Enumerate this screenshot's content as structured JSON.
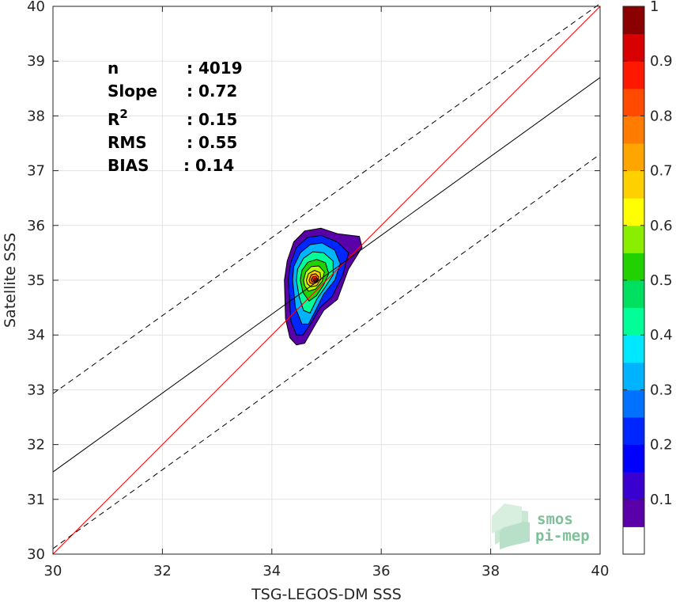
{
  "chart_data": {
    "type": "scatter",
    "subtype": "density-contour",
    "xlabel": "TSG-LEGOS-DM SSS",
    "ylabel": "Satellite SSS",
    "xlim": [
      30,
      40
    ],
    "ylim": [
      30,
      40
    ],
    "x_ticks": [
      "30",
      "32",
      "34",
      "36",
      "38",
      "40"
    ],
    "y_ticks": [
      "30",
      "31",
      "32",
      "33",
      "34",
      "35",
      "36",
      "37",
      "38",
      "39",
      "40"
    ],
    "grid": true,
    "stats": [
      {
        "label": "n",
        "sep": ": ",
        "value": "4019"
      },
      {
        "label": "Slope",
        "sep": ": ",
        "value": "0.72"
      },
      {
        "label": "R",
        "sup": "2",
        "sep": ": ",
        "value": "0.15"
      },
      {
        "label": "RMS",
        "sep": ": ",
        "value": "0.55"
      },
      {
        "label": "BIAS",
        "sep": ": ",
        "value": "0.14"
      }
    ],
    "lines": [
      {
        "kind": "identity",
        "color": "#ff0000",
        "dash": false,
        "points": [
          [
            30,
            30
          ],
          [
            40,
            40
          ]
        ]
      },
      {
        "kind": "regression",
        "color": "#000000",
        "dash": false,
        "points": [
          [
            30,
            31.5
          ],
          [
            40,
            38.7
          ]
        ]
      },
      {
        "kind": "upper-bound",
        "color": "#000000",
        "dash": true,
        "points": [
          [
            30,
            32.93
          ],
          [
            40,
            40.05
          ]
        ]
      },
      {
        "kind": "lower-bound",
        "color": "#000000",
        "dash": true,
        "points": [
          [
            30,
            30.1
          ],
          [
            40,
            37.3
          ]
        ]
      }
    ],
    "density": {
      "center": [
        34.8,
        35.0
      ],
      "levels": [
        0.05,
        0.15,
        0.25,
        0.35,
        0.45,
        0.55,
        0.65,
        0.75,
        0.85,
        0.95
      ],
      "contours": [
        [
          [
            34.23,
            35.0
          ],
          [
            34.28,
            35.35
          ],
          [
            34.4,
            35.7
          ],
          [
            34.6,
            35.9
          ],
          [
            34.9,
            35.95
          ],
          [
            35.2,
            35.85
          ],
          [
            35.6,
            35.8
          ],
          [
            35.65,
            35.6
          ],
          [
            35.4,
            35.2
          ],
          [
            35.2,
            34.65
          ],
          [
            34.95,
            34.45
          ],
          [
            34.8,
            34.2
          ],
          [
            34.6,
            33.85
          ],
          [
            34.45,
            33.82
          ],
          [
            34.33,
            33.95
          ],
          [
            34.25,
            34.3
          ]
        ],
        [
          [
            34.3,
            35.0
          ],
          [
            34.34,
            35.3
          ],
          [
            34.45,
            35.6
          ],
          [
            34.65,
            35.78
          ],
          [
            34.9,
            35.82
          ],
          [
            35.2,
            35.7
          ],
          [
            35.4,
            35.5
          ],
          [
            35.3,
            35.1
          ],
          [
            35.1,
            34.7
          ],
          [
            34.88,
            34.5
          ],
          [
            34.72,
            34.22
          ],
          [
            34.57,
            34.0
          ],
          [
            34.45,
            34.0
          ],
          [
            34.35,
            34.25
          ]
        ],
        [
          [
            34.38,
            35.0
          ],
          [
            34.4,
            35.25
          ],
          [
            34.52,
            35.5
          ],
          [
            34.7,
            35.65
          ],
          [
            34.92,
            35.68
          ],
          [
            35.15,
            35.55
          ],
          [
            35.25,
            35.3
          ],
          [
            35.15,
            35.0
          ],
          [
            34.95,
            34.75
          ],
          [
            34.8,
            34.45
          ],
          [
            34.67,
            34.2
          ],
          [
            34.55,
            34.2
          ],
          [
            34.43,
            34.5
          ]
        ],
        [
          [
            34.45,
            35.0
          ],
          [
            34.47,
            35.2
          ],
          [
            34.58,
            35.4
          ],
          [
            34.75,
            35.52
          ],
          [
            34.95,
            35.5
          ],
          [
            35.12,
            35.35
          ],
          [
            35.12,
            35.1
          ],
          [
            34.98,
            34.88
          ],
          [
            34.82,
            34.65
          ],
          [
            34.7,
            34.4
          ],
          [
            34.58,
            34.45
          ],
          [
            34.5,
            34.7
          ]
        ],
        [
          [
            34.52,
            35.0
          ],
          [
            34.55,
            35.18
          ],
          [
            34.66,
            35.33
          ],
          [
            34.82,
            35.38
          ],
          [
            34.98,
            35.32
          ],
          [
            35.04,
            35.12
          ],
          [
            34.95,
            34.92
          ],
          [
            34.82,
            34.72
          ],
          [
            34.68,
            34.62
          ],
          [
            34.57,
            34.78
          ]
        ],
        [
          [
            34.58,
            35.0
          ],
          [
            34.62,
            35.15
          ],
          [
            34.72,
            35.25
          ],
          [
            34.86,
            35.26
          ],
          [
            34.96,
            35.15
          ],
          [
            34.92,
            34.98
          ],
          [
            34.8,
            34.84
          ],
          [
            34.67,
            34.8
          ],
          [
            34.6,
            34.9
          ]
        ],
        [
          [
            34.63,
            35.0
          ],
          [
            34.67,
            35.12
          ],
          [
            34.78,
            35.18
          ],
          [
            34.88,
            35.14
          ],
          [
            34.9,
            35.02
          ],
          [
            34.82,
            34.9
          ],
          [
            34.72,
            34.88
          ],
          [
            34.65,
            34.93
          ]
        ],
        [
          [
            34.68,
            35.0
          ],
          [
            34.72,
            35.1
          ],
          [
            34.8,
            35.12
          ],
          [
            34.86,
            35.06
          ],
          [
            34.84,
            34.97
          ],
          [
            34.76,
            34.93
          ],
          [
            34.7,
            34.95
          ]
        ],
        [
          [
            34.72,
            35.0
          ],
          [
            34.75,
            35.06
          ],
          [
            34.81,
            35.07
          ],
          [
            34.84,
            35.01
          ],
          [
            34.8,
            34.96
          ],
          [
            34.74,
            34.97
          ]
        ],
        [
          [
            34.76,
            35.0
          ],
          [
            34.78,
            35.03
          ],
          [
            34.81,
            35.03
          ],
          [
            34.82,
            34.99
          ],
          [
            34.78,
            34.98
          ]
        ]
      ],
      "contour_colors": [
        "#5a00a8",
        "#0026ff",
        "#00b3ff",
        "#00ff99",
        "#22d100",
        "#b5ff00",
        "#ffd000",
        "#ff7c00",
        "#ff2a00",
        "#c00000"
      ]
    },
    "colorbar": {
      "ticks": [
        "1",
        "0.9",
        "0.8",
        "0.7",
        "0.6",
        "0.5",
        "0.4",
        "0.3",
        "0.2",
        "0.1"
      ],
      "tick_values": [
        1,
        0.9,
        0.8,
        0.7,
        0.6,
        0.5,
        0.4,
        0.3,
        0.2,
        0.1
      ],
      "range": [
        0,
        1
      ],
      "bands": [
        {
          "lo": 0.0,
          "hi": 0.05,
          "color": "#ffffff"
        },
        {
          "lo": 0.05,
          "hi": 0.1,
          "color": "#5a00a8"
        },
        {
          "lo": 0.1,
          "hi": 0.15,
          "color": "#3a00d0"
        },
        {
          "lo": 0.15,
          "hi": 0.2,
          "color": "#0000ff"
        },
        {
          "lo": 0.2,
          "hi": 0.25,
          "color": "#0026ff"
        },
        {
          "lo": 0.25,
          "hi": 0.3,
          "color": "#0072ff"
        },
        {
          "lo": 0.3,
          "hi": 0.35,
          "color": "#00b3ff"
        },
        {
          "lo": 0.35,
          "hi": 0.4,
          "color": "#00e8ff"
        },
        {
          "lo": 0.4,
          "hi": 0.45,
          "color": "#00ff99"
        },
        {
          "lo": 0.45,
          "hi": 0.5,
          "color": "#00e060"
        },
        {
          "lo": 0.5,
          "hi": 0.55,
          "color": "#22d100"
        },
        {
          "lo": 0.55,
          "hi": 0.6,
          "color": "#8aee00"
        },
        {
          "lo": 0.6,
          "hi": 0.65,
          "color": "#ffff00"
        },
        {
          "lo": 0.65,
          "hi": 0.7,
          "color": "#ffd000"
        },
        {
          "lo": 0.7,
          "hi": 0.75,
          "color": "#ffa500"
        },
        {
          "lo": 0.75,
          "hi": 0.8,
          "color": "#ff7c00"
        },
        {
          "lo": 0.8,
          "hi": 0.85,
          "color": "#ff4a00"
        },
        {
          "lo": 0.85,
          "hi": 0.9,
          "color": "#ff1800"
        },
        {
          "lo": 0.9,
          "hi": 0.95,
          "color": "#d80000"
        },
        {
          "lo": 0.95,
          "hi": 1.0,
          "color": "#8b0000"
        }
      ]
    },
    "watermark": {
      "line1": "smos",
      "line2": "pi-mep"
    }
  }
}
